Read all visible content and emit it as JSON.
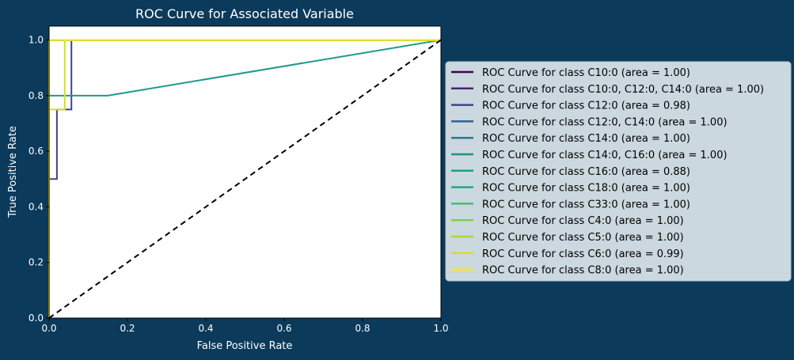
{
  "chart_data": {
    "type": "line",
    "title": "ROC Curve for Associated Variable",
    "xlabel": "False Positive Rate",
    "ylabel": "True Positive Rate",
    "xlim": [
      0,
      1
    ],
    "ylim": [
      0,
      1.05
    ],
    "xticks": [
      "0.0",
      "0.2",
      "0.4",
      "0.6",
      "0.8",
      "1.0"
    ],
    "yticks": [
      "0.0",
      "0.2",
      "0.4",
      "0.6",
      "0.8",
      "1.0"
    ],
    "grid": false,
    "legend_position": "right, outside plot",
    "background_color": "#0b3a5b",
    "plot_background": "#ffffff",
    "series": [
      {
        "name": "ROC Curve for class C10:0 (area = 1.00)",
        "color": "#440154",
        "x": [
          0,
          0,
          1
        ],
        "y": [
          0,
          1,
          1
        ]
      },
      {
        "name": "ROC Curve for class C10:0, C12:0, C14:0 (area = 1.00)",
        "color": "#482475",
        "x": [
          0,
          0,
          1
        ],
        "y": [
          0,
          1,
          1
        ]
      },
      {
        "name": "ROC Curve for class C12:0 (area = 0.98)",
        "color": "#414487",
        "x": [
          0,
          0,
          0.02,
          0.02,
          0.057,
          0.057,
          1
        ],
        "y": [
          0,
          0.5,
          0.5,
          0.75,
          0.75,
          1,
          1
        ]
      },
      {
        "name": "ROC Curve for class C12:0, C14:0 (area = 1.00)",
        "color": "#355f8d",
        "x": [
          0,
          0,
          1
        ],
        "y": [
          0,
          1,
          1
        ]
      },
      {
        "name": "ROC Curve for class C14:0 (area = 1.00)",
        "color": "#2a788e",
        "x": [
          0,
          0,
          1
        ],
        "y": [
          0,
          1,
          1
        ]
      },
      {
        "name": "ROC Curve for class C14:0, C16:0 (area = 1.00)",
        "color": "#21918c",
        "x": [
          0,
          0,
          1
        ],
        "y": [
          0,
          1,
          1
        ]
      },
      {
        "name": "ROC Curve for class C16:0 (area = 0.88)",
        "color": "#1e9b8a",
        "x": [
          0,
          0,
          0.15,
          1
        ],
        "y": [
          0,
          0.8,
          0.8,
          1
        ]
      },
      {
        "name": "ROC Curve for class C18:0 (area = 1.00)",
        "color": "#22a884",
        "x": [
          0,
          0,
          1
        ],
        "y": [
          0,
          1,
          1
        ]
      },
      {
        "name": "ROC Curve for class C33:0 (area = 1.00)",
        "color": "#44bf70",
        "x": [
          0,
          0,
          1
        ],
        "y": [
          0,
          1,
          1
        ]
      },
      {
        "name": "ROC Curve for class C4:0 (area = 1.00)",
        "color": "#7ad151",
        "x": [
          0,
          0,
          1
        ],
        "y": [
          0,
          1,
          1
        ]
      },
      {
        "name": "ROC Curve for class C5:0 (area = 1.00)",
        "color": "#a5db36",
        "x": [
          0,
          0,
          1
        ],
        "y": [
          0,
          1,
          1
        ]
      },
      {
        "name": "ROC Curve for class C6:0 (area = 0.99)",
        "color": "#d2e21b",
        "x": [
          0,
          0,
          0.04,
          0.04,
          1
        ],
        "y": [
          0,
          0.75,
          0.75,
          1,
          1
        ]
      },
      {
        "name": "ROC Curve for class C8:0 (area = 1.00)",
        "color": "#fde725",
        "x": [
          0,
          0,
          1
        ],
        "y": [
          0,
          1,
          1
        ]
      }
    ],
    "diagonal": {
      "x": [
        0,
        1
      ],
      "y": [
        0,
        1
      ],
      "color": "#000000",
      "style": "dashed"
    }
  }
}
